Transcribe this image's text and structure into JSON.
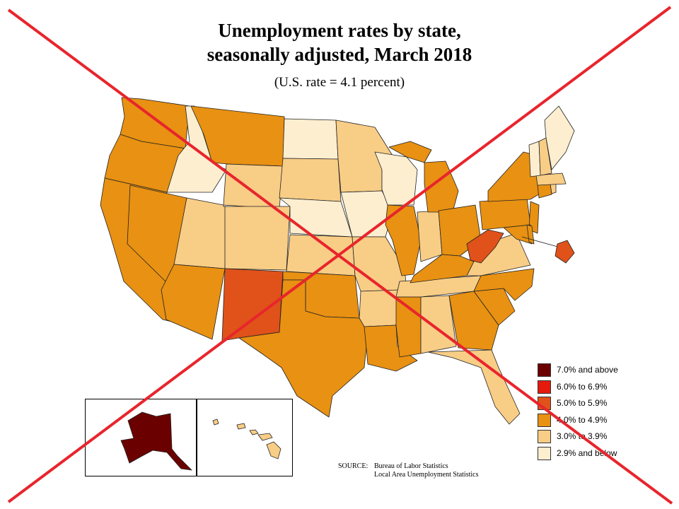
{
  "title_line1": "Unemployment rates by state,",
  "title_line2": "seasonally adjusted, March 2018",
  "subtitle": "(U.S. rate = 4.1 percent)",
  "legend": [
    {
      "label": "7.0% and above",
      "color": "#6b0000"
    },
    {
      "label": "6.0% to 6.9%",
      "color": "#e51a0c"
    },
    {
      "label": "5.0% to 5.9%",
      "color": "#e0521a"
    },
    {
      "label": "4.0% to 4.9%",
      "color": "#e89112"
    },
    {
      "label": "3.0% to 3.9%",
      "color": "#f8cd86"
    },
    {
      "label": "2.9% and below",
      "color": "#fdeed0"
    }
  ],
  "source": {
    "label": "SOURCE:",
    "line1": "Bureau of Labor Statistics",
    "line2": "Local Area Unemployment Statistics"
  },
  "overlay": {
    "type": "red-x-cross-out",
    "color": "#e8252c"
  }
}
